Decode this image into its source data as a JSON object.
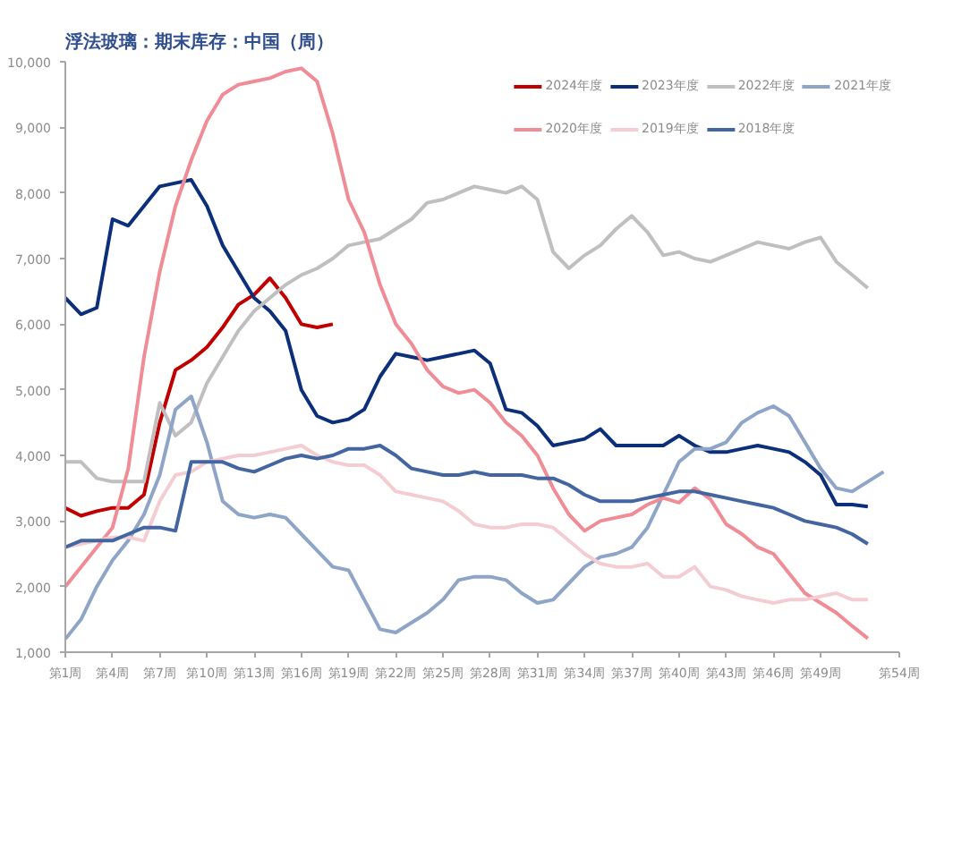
{
  "chart_data": {
    "type": "line",
    "title": "浮法玻璃：期末库存：中国（周）",
    "categories": [
      "第1周",
      null,
      null,
      "第4周",
      null,
      null,
      "第7周",
      null,
      null,
      "第10周",
      null,
      null,
      "第13周",
      null,
      null,
      "第16周",
      null,
      null,
      "第19周",
      null,
      null,
      "第22周",
      null,
      null,
      "第25周",
      null,
      null,
      "第28周",
      null,
      null,
      "第31周",
      null,
      null,
      "第34周",
      null,
      null,
      "第37周",
      null,
      null,
      "第40周",
      null,
      null,
      "第43周",
      null,
      null,
      "第46周",
      null,
      null,
      "第49周",
      null,
      null,
      null,
      null,
      "第54周"
    ],
    "series": [
      {
        "name": "2024年度",
        "color": "#c00000",
        "values": [
          3200,
          3080,
          3150,
          3200,
          3200,
          3400,
          4500,
          5300,
          5450,
          5650,
          5950,
          6300,
          6450,
          6700,
          6400,
          6000,
          5950,
          6000,
          null,
          null,
          null,
          null,
          null,
          null,
          null,
          null,
          null,
          null,
          null,
          null,
          null,
          null,
          null,
          null,
          null,
          null,
          null,
          null,
          null,
          null,
          null,
          null,
          null,
          null,
          null,
          null,
          null,
          null,
          null,
          null,
          null,
          null,
          null,
          null
        ]
      },
      {
        "name": "2023年度",
        "color": "#0c2f7a",
        "values": [
          6400,
          6150,
          6250,
          7600,
          7500,
          7800,
          8100,
          8150,
          8200,
          7800,
          7200,
          6800,
          6400,
          6200,
          5900,
          5000,
          4600,
          4500,
          4550,
          4700,
          5200,
          5550,
          5500,
          5450,
          5500,
          5550,
          5600,
          5400,
          4700,
          4650,
          4450,
          4150,
          4200,
          4250,
          4400,
          4150,
          4150,
          4150,
          4150,
          4300,
          4150,
          4050,
          4050,
          4100,
          4150,
          4100,
          4050,
          3900,
          3700,
          3250,
          3250,
          3220,
          null,
          null
        ]
      },
      {
        "name": "2022年度",
        "color": "#bfbfbf",
        "values": [
          3900,
          3900,
          3650,
          3600,
          3600,
          3600,
          4800,
          4300,
          4500,
          5100,
          5500,
          5900,
          6200,
          6400,
          6600,
          6750,
          6850,
          7000,
          7200,
          7250,
          7300,
          7450,
          7600,
          7850,
          7900,
          8000,
          8100,
          8050,
          8000,
          8100,
          7900,
          7100,
          6850,
          7050,
          7200,
          7450,
          7650,
          7400,
          7050,
          7100,
          7000,
          6950,
          7050,
          7150,
          7250,
          7200,
          7150,
          7250,
          7320,
          6950,
          6750,
          6550,
          null,
          null
        ]
      },
      {
        "name": "2021年度",
        "color": "#8ea5c8",
        "values": [
          1200,
          1500,
          2000,
          2400,
          2700,
          3100,
          3700,
          4700,
          4900,
          4200,
          3300,
          3100,
          3050,
          3100,
          3050,
          2800,
          2550,
          2300,
          2250,
          1800,
          1350,
          1300,
          1450,
          1600,
          1800,
          2100,
          2150,
          2150,
          2100,
          1900,
          1750,
          1800,
          2050,
          2300,
          2450,
          2500,
          2600,
          2900,
          3400,
          3900,
          4100,
          4100,
          4200,
          4500,
          4650,
          4750,
          4600,
          4200,
          3800,
          3500,
          3450,
          3600,
          3750,
          null
        ]
      },
      {
        "name": "2020年度",
        "color": "#f08c96",
        "values": [
          2000,
          2300,
          2600,
          2900,
          3800,
          5500,
          6800,
          7800,
          8500,
          9100,
          9500,
          9650,
          9700,
          9750,
          9850,
          9900,
          9700,
          8900,
          7900,
          7400,
          6600,
          6000,
          5700,
          5300,
          5050,
          4950,
          5000,
          4800,
          4500,
          4300,
          4000,
          3500,
          3100,
          2850,
          3000,
          3050,
          3100,
          3250,
          3350,
          3280,
          3500,
          3330,
          2950,
          2800,
          2600,
          2500,
          2200,
          1900,
          1750,
          1600,
          1400,
          1210,
          null,
          null
        ]
      },
      {
        "name": "2019年度",
        "color": "#f4cdd2",
        "values": [
          2600,
          2650,
          2700,
          2750,
          2750,
          2700,
          3300,
          3700,
          3750,
          3900,
          3950,
          4000,
          4000,
          4050,
          4100,
          4150,
          4000,
          3900,
          3850,
          3850,
          3700,
          3450,
          3400,
          3350,
          3300,
          3150,
          2950,
          2900,
          2900,
          2950,
          2950,
          2900,
          2700,
          2500,
          2350,
          2300,
          2300,
          2350,
          2150,
          2150,
          2300,
          2000,
          1950,
          1850,
          1800,
          1750,
          1800,
          1800,
          1850,
          1900,
          1800,
          1800,
          null,
          null
        ]
      },
      {
        "name": "2018年度",
        "color": "#4466a0",
        "values": [
          2600,
          2700,
          2700,
          2700,
          2800,
          2900,
          2900,
          2850,
          3900,
          3900,
          3900,
          3800,
          3750,
          3850,
          3950,
          4000,
          3950,
          4000,
          4100,
          4100,
          4150,
          4000,
          3800,
          3750,
          3700,
          3700,
          3750,
          3700,
          3700,
          3700,
          3650,
          3650,
          3550,
          3400,
          3300,
          3300,
          3300,
          3350,
          3400,
          3450,
          3450,
          3400,
          3350,
          3300,
          3250,
          3200,
          3100,
          3000,
          2950,
          2900,
          2800,
          2650,
          null,
          null
        ]
      }
    ],
    "ylim": [
      1000,
      10000
    ],
    "yticks": [
      {
        "value": 1000,
        "label": "1,000"
      },
      {
        "value": 2000,
        "label": "2,000"
      },
      {
        "value": 3000,
        "label": "3,000"
      },
      {
        "value": 4000,
        "label": "4,000"
      },
      {
        "value": 5000,
        "label": "5,000"
      },
      {
        "value": 6000,
        "label": "6,000"
      },
      {
        "value": 7000,
        "label": "7,000"
      },
      {
        "value": 8000,
        "label": "8,000"
      },
      {
        "value": 9000,
        "label": "9,000"
      },
      {
        "value": 10000,
        "label": "10,000"
      }
    ],
    "grid": false,
    "marker": "none",
    "legend": "top right",
    "line_style": "solid"
  }
}
